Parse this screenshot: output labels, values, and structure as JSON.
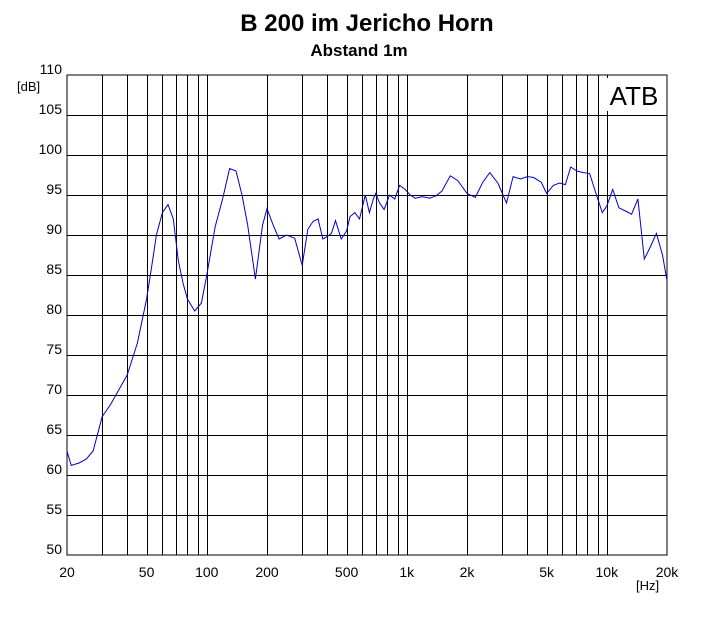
{
  "chart_data": {
    "type": "line",
    "title": "B 200 im Jericho Horn",
    "subtitle": "Abstand 1m",
    "ylabel": "[dB]",
    "xlabel": "[Hz]",
    "watermark": "ATB",
    "x_scale": "log",
    "xlim": [
      20,
      20000
    ],
    "ylim": [
      50,
      110
    ],
    "grid": true,
    "line_color": "#0000cc",
    "x_ticks": [
      {
        "value": 20,
        "label": "20"
      },
      {
        "value": 50,
        "label": "50"
      },
      {
        "value": 100,
        "label": "100"
      },
      {
        "value": 200,
        "label": "200"
      },
      {
        "value": 500,
        "label": "500"
      },
      {
        "value": 1000,
        "label": "1k"
      },
      {
        "value": 2000,
        "label": "2k"
      },
      {
        "value": 5000,
        "label": "5k"
      },
      {
        "value": 10000,
        "label": "10k"
      },
      {
        "value": 20000,
        "label": "20k"
      }
    ],
    "y_ticks": [
      {
        "value": 50,
        "label": "50"
      },
      {
        "value": 55,
        "label": "55"
      },
      {
        "value": 60,
        "label": "60"
      },
      {
        "value": 65,
        "label": "65"
      },
      {
        "value": 70,
        "label": "70"
      },
      {
        "value": 75,
        "label": "75"
      },
      {
        "value": 80,
        "label": "80"
      },
      {
        "value": 85,
        "label": "85"
      },
      {
        "value": 90,
        "label": "90"
      },
      {
        "value": 95,
        "label": "95"
      },
      {
        "value": 100,
        "label": "100"
      },
      {
        "value": 105,
        "label": "105"
      },
      {
        "value": 110,
        "label": "110"
      }
    ],
    "series": [
      {
        "x": [
          20,
          21,
          23,
          25,
          27,
          30,
          33,
          37,
          40,
          45,
          50,
          53,
          56,
          60,
          64,
          68,
          72,
          76,
          80,
          87,
          94,
          100,
          110,
          120,
          130,
          140,
          150,
          160,
          175,
          190,
          200,
          215,
          230,
          250,
          275,
          300,
          320,
          340,
          360,
          380,
          400,
          420,
          440,
          470,
          500,
          520,
          550,
          580,
          620,
          650,
          680,
          700,
          730,
          770,
          820,
          870,
          920,
          980,
          1040,
          1100,
          1200,
          1300,
          1400,
          1500,
          1650,
          1800,
          2000,
          2200,
          2400,
          2600,
          2850,
          3150,
          3400,
          3700,
          4000,
          4300,
          4700,
          5000,
          5400,
          5800,
          6200,
          6600,
          7100,
          7600,
          8200,
          8800,
          9500,
          10000,
          10700,
          11500,
          12400,
          13300,
          14300,
          15400,
          16500,
          17700,
          19000,
          20000
        ],
        "values": [
          63,
          61.2,
          61.5,
          62,
          63,
          67.3,
          68.8,
          71,
          72.5,
          76.5,
          82,
          86,
          90,
          92.8,
          93.8,
          92,
          86.8,
          84,
          82,
          80.5,
          81.5,
          85,
          91,
          94.5,
          98.3,
          98,
          95,
          91.3,
          84.5,
          91.2,
          93.3,
          91.2,
          89.5,
          90,
          89.6,
          86.2,
          90.7,
          91.7,
          92,
          89.5,
          89.8,
          90.2,
          91.8,
          89.5,
          90.5,
          92.3,
          92.8,
          92,
          95,
          92.8,
          94.5,
          95.2,
          94,
          93.2,
          95,
          94.5,
          96.2,
          95.7,
          95,
          94.6,
          94.8,
          94.6,
          94.9,
          95.5,
          97.4,
          96.8,
          95.2,
          94.7,
          96.6,
          97.8,
          96.5,
          94,
          97.3,
          97,
          97.3,
          97.2,
          96.6,
          95.2,
          96.2,
          96.5,
          96.3,
          98.5,
          98,
          97.8,
          97.7,
          95.3,
          92.8,
          93.6,
          95.7,
          93.4,
          93,
          92.6,
          94.5,
          87,
          88.5,
          90.2,
          87.5,
          84.3
        ]
      }
    ]
  }
}
